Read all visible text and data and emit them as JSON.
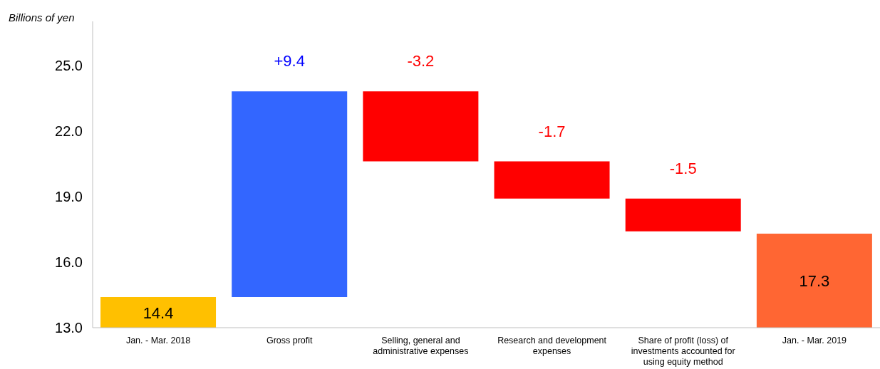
{
  "chart_data": {
    "type": "bar",
    "ylabel": "Billions of yen",
    "categories": [
      "Jan. - Mar. 2018",
      "Gross profit",
      "Selling, general and administrative expenses",
      "Research and development expenses",
      "Share of profit (loss) of investments accounted for using equity method",
      "Jan. - Mar. 2019"
    ],
    "values": [
      14.4,
      9.4,
      -3.2,
      -1.7,
      -1.5,
      17.3
    ],
    "base": [
      null,
      14.4,
      23.8,
      20.6,
      18.9,
      null
    ],
    "colors": [
      "#ffc000",
      "#3366ff",
      "#ff0000",
      "#ff0000",
      "#ff0000",
      "#ff6633"
    ],
    "value_labels": [
      "14.4",
      "+9.4",
      "-3.2",
      "-1.7",
      "-1.5",
      "17.3"
    ],
    "ylim": [
      13,
      27
    ],
    "yticks": [
      {
        "value": 13,
        "label": "13.0"
      },
      {
        "value": 16,
        "label": "16.0"
      },
      {
        "value": 19,
        "label": "19.0"
      },
      {
        "value": 22,
        "label": "22.0"
      },
      {
        "value": 25,
        "label": "25.0"
      }
    ],
    "grid": false
  }
}
